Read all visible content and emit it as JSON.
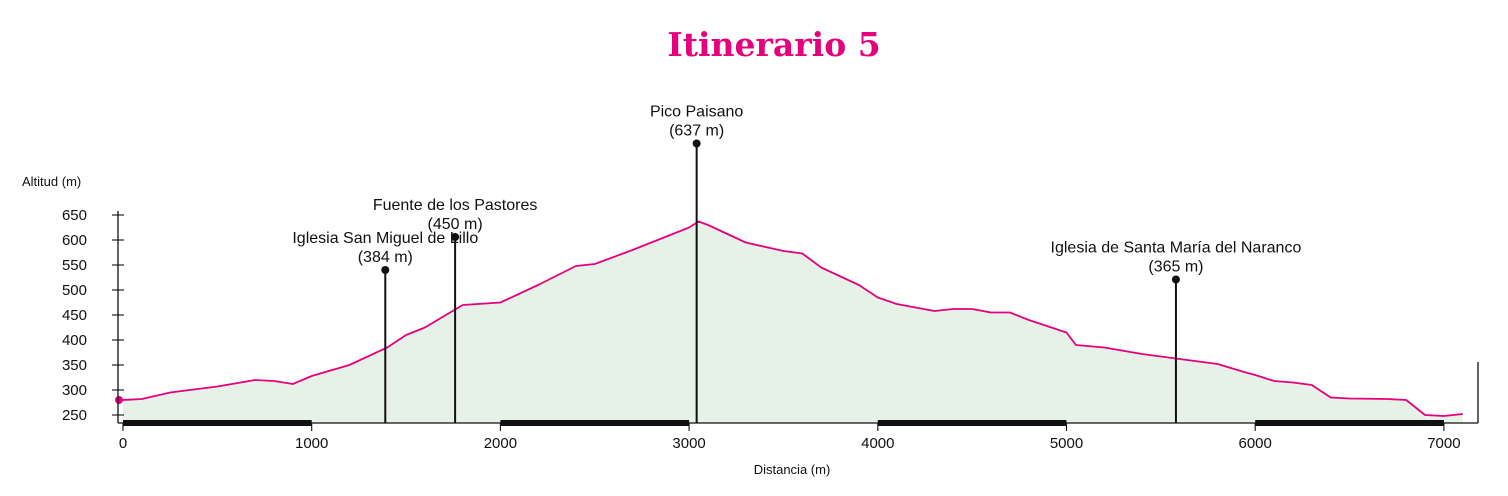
{
  "chart_data": {
    "type": "area",
    "title": "Itinerario 5",
    "xlabel": "Distancia (m)",
    "ylabel": "Altitud (m)",
    "xlim": [
      0,
      7200
    ],
    "ylim": [
      230,
      660
    ],
    "x_ticks": [
      0,
      1000,
      2000,
      3000,
      4000,
      5000,
      6000,
      7000
    ],
    "y_ticks": [
      250,
      300,
      350,
      400,
      450,
      500,
      550,
      600,
      650
    ],
    "grid": false,
    "x": [
      0,
      100,
      250,
      500,
      700,
      800,
      900,
      1000,
      1200,
      1400,
      1500,
      1600,
      1800,
      2000,
      2200,
      2400,
      2500,
      2700,
      2900,
      3000,
      3050,
      3100,
      3300,
      3500,
      3600,
      3700,
      3900,
      4000,
      4100,
      4300,
      4400,
      4500,
      4600,
      4700,
      4800,
      5000,
      5050,
      5200,
      5400,
      5600,
      5800,
      5950,
      6000,
      6100,
      6200,
      6300,
      6400,
      6500,
      6700,
      6800,
      6900,
      7000,
      7100
    ],
    "y": [
      280,
      282,
      295,
      307,
      320,
      318,
      312,
      328,
      350,
      385,
      410,
      425,
      470,
      475,
      510,
      548,
      552,
      580,
      610,
      625,
      637,
      630,
      595,
      578,
      573,
      545,
      510,
      485,
      472,
      458,
      462,
      462,
      455,
      455,
      440,
      415,
      390,
      385,
      372,
      362,
      352,
      335,
      330,
      318,
      315,
      310,
      285,
      283,
      282,
      280,
      250,
      248,
      252
    ],
    "colors": {
      "line": "#e6007e",
      "fill": "#e6f1e7",
      "title": "#e6007e",
      "axis": "#111111"
    },
    "annotations": [
      {
        "name": "Iglesia San Miguel de Lillo",
        "value_label": "(384 m)",
        "x": 1390,
        "y": 384
      },
      {
        "name": "Fuente de los Pastores",
        "value_label": "(450 m)",
        "x": 1760,
        "y": 450
      },
      {
        "name": "Pico Paisano",
        "value_label": "(637 m)",
        "x": 3040,
        "y": 637
      },
      {
        "name": "Iglesia de Santa María del Naranco",
        "value_label": "(365 m)",
        "x": 5580,
        "y": 365
      }
    ]
  }
}
